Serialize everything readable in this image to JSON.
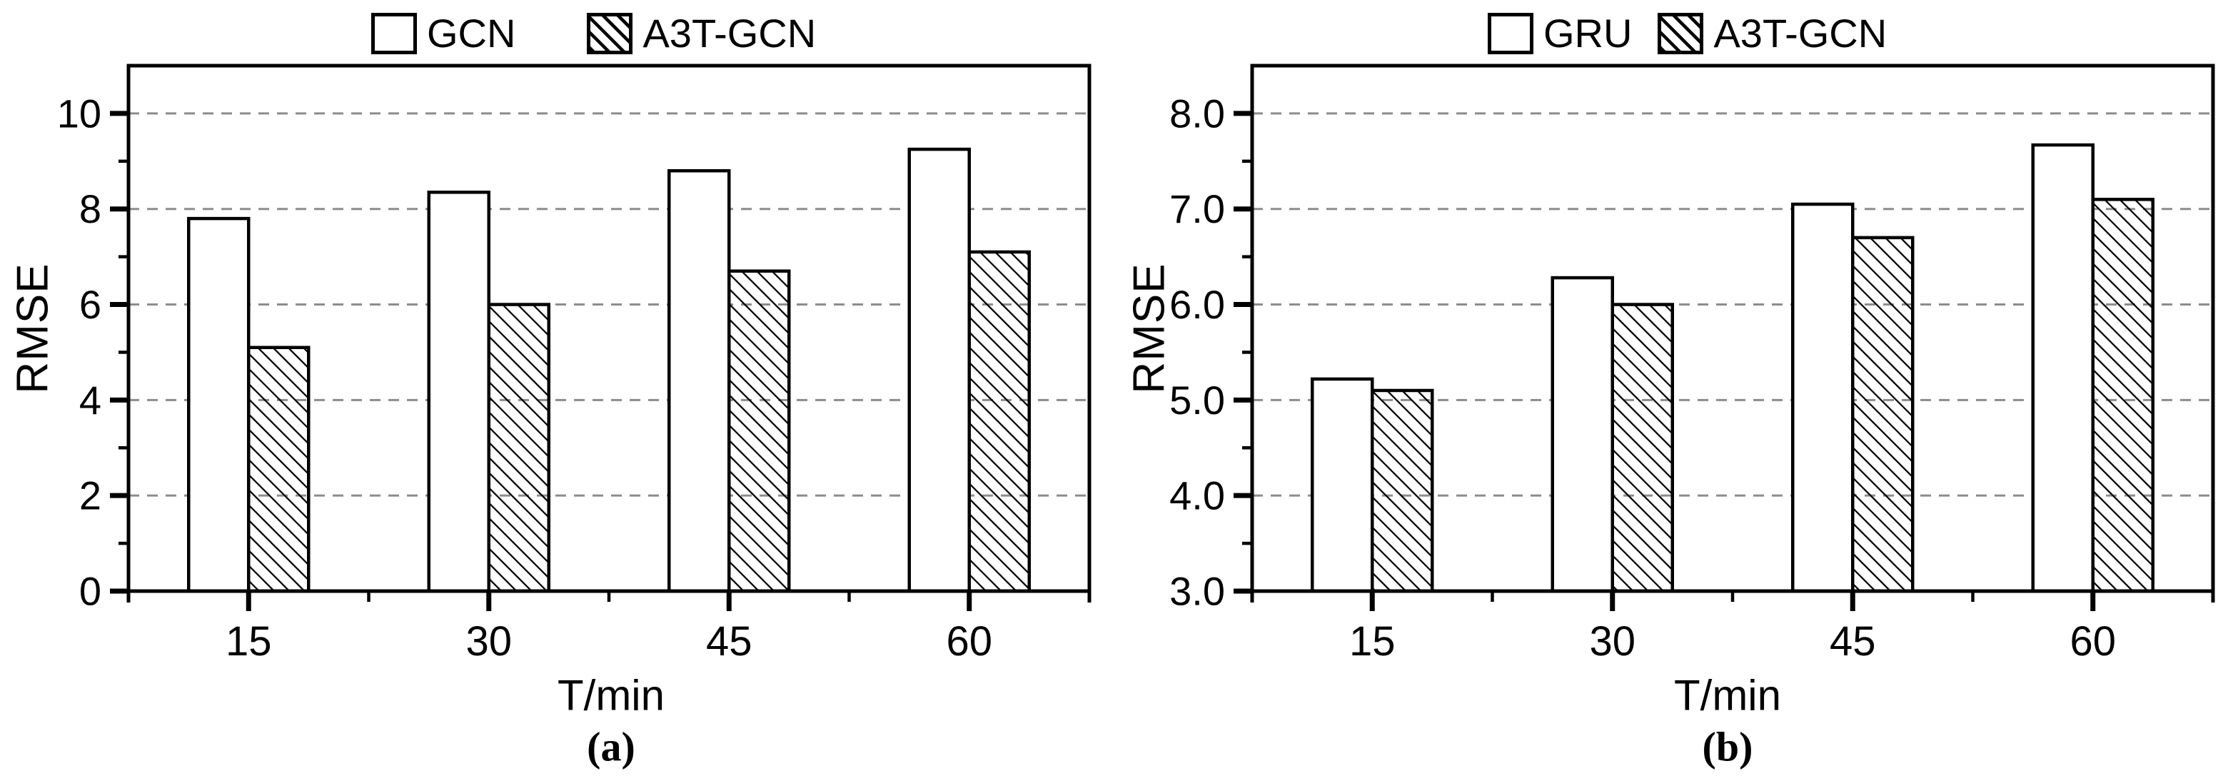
{
  "page": {
    "background": "#ffffff",
    "foreground": "#000000",
    "grid_color": "#8c8c8c"
  },
  "chart_data": [
    {
      "id": "a",
      "type": "bar",
      "caption": "(a)",
      "xlabel": "T/min",
      "ylabel": "RMSE",
      "categories": [
        "15",
        "30",
        "45",
        "60"
      ],
      "series": [
        {
          "name": "GCN",
          "pattern": "solid-white",
          "values": [
            7.8,
            8.35,
            8.8,
            9.25
          ]
        },
        {
          "name": "A3T-GCN",
          "pattern": "diagonal-hatch",
          "values": [
            5.1,
            6.0,
            6.7,
            7.1
          ]
        }
      ],
      "ylim": [
        0,
        11
      ],
      "yticks": [
        0,
        2,
        4,
        6,
        8,
        10
      ],
      "ytick_labels": [
        "0",
        "2",
        "4",
        "6",
        "8",
        "10"
      ],
      "y_minor_step": 1,
      "grid": "horizontal-dashed-at-major-ticks",
      "legend_position": "top"
    },
    {
      "id": "b",
      "type": "bar",
      "caption": "(b)",
      "xlabel": "T/min",
      "ylabel": "RMSE",
      "categories": [
        "15",
        "30",
        "45",
        "60"
      ],
      "series": [
        {
          "name": "GRU",
          "pattern": "solid-white",
          "values": [
            5.22,
            6.28,
            7.05,
            7.67
          ]
        },
        {
          "name": "A3T-GCN",
          "pattern": "diagonal-hatch",
          "values": [
            5.1,
            6.0,
            6.7,
            7.1
          ]
        }
      ],
      "ylim": [
        3.0,
        8.5
      ],
      "yticks": [
        3.0,
        4.0,
        5.0,
        6.0,
        7.0,
        8.0
      ],
      "ytick_labels": [
        "3.0",
        "4.0",
        "5.0",
        "6.0",
        "7.0",
        "8.0"
      ],
      "y_minor_step": 0.5,
      "grid": "horizontal-dashed-at-major-ticks",
      "legend_position": "top"
    }
  ]
}
